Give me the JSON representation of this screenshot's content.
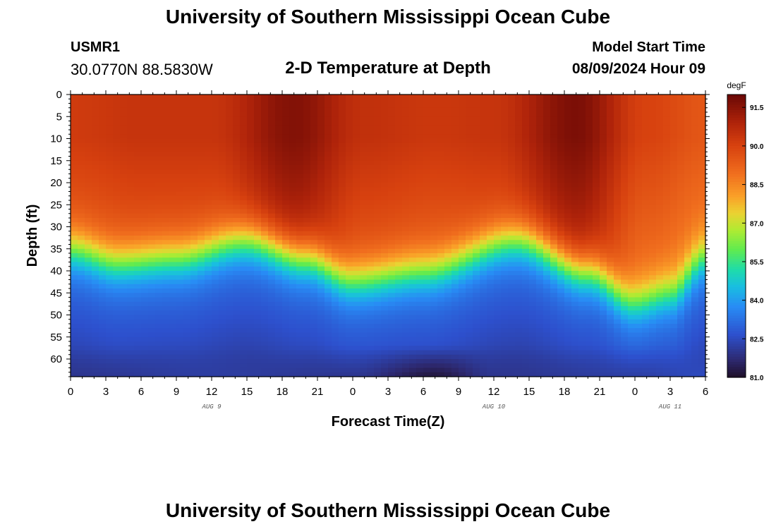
{
  "header": {
    "title": "University of Southern Mississippi Ocean Cube",
    "station_id": "USMR1",
    "station_coords": "30.0770N  88.5830W",
    "subtitle": "2-D Temperature at Depth",
    "start_label": "Model Start Time",
    "start_value": "08/09/2024 Hour 09"
  },
  "footer": {
    "title": "University of Southern Mississippi Ocean Cube"
  },
  "chart_data": {
    "type": "heatmap",
    "title": "2-D Temperature at Depth",
    "xlabel": "Forecast Time(Z)",
    "ylabel": "Depth (ft)",
    "x_range_hours": [
      0,
      54
    ],
    "x_tick_hours": [
      0,
      3,
      6,
      9,
      12,
      15,
      18,
      21,
      24,
      27,
      30,
      33,
      36,
      39,
      42,
      45,
      48,
      51,
      54
    ],
    "x_tick_labels": [
      "0",
      "3",
      "6",
      "9",
      "12",
      "15",
      "18",
      "21",
      "0",
      "3",
      "6",
      "9",
      "12",
      "15",
      "18",
      "21",
      "0",
      "3",
      "6"
    ],
    "date_labels": [
      {
        "label": "AUG 9",
        "hour": 12
      },
      {
        "label": "AUG 10",
        "hour": 36
      },
      {
        "label": "AUG 11",
        "hour": 51
      }
    ],
    "y_range_ft": [
      0,
      64
    ],
    "y_ticks": [
      0,
      5,
      10,
      15,
      20,
      25,
      30,
      35,
      40,
      45,
      50,
      55,
      60
    ],
    "colorbar": {
      "unit": "degF",
      "min": 81.0,
      "max": 92.0,
      "tick_labels": [
        "91.5",
        "90.0",
        "88.5",
        "87.0",
        "85.5",
        "84.0",
        "82.5",
        "81.0"
      ],
      "tick_values": [
        91.5,
        90.0,
        88.5,
        87.0,
        85.5,
        84.0,
        82.5,
        81.0
      ]
    },
    "thermocline_depth_ft": [
      {
        "hour": 0,
        "depth": 35
      },
      {
        "hour": 4,
        "depth": 38
      },
      {
        "hour": 9,
        "depth": 37
      },
      {
        "hour": 15,
        "depth": 33
      },
      {
        "hour": 20,
        "depth": 37
      },
      {
        "hour": 24,
        "depth": 42
      },
      {
        "hour": 30,
        "depth": 40
      },
      {
        "hour": 38,
        "depth": 33
      },
      {
        "hour": 44,
        "depth": 40
      },
      {
        "hour": 48,
        "depth": 47
      },
      {
        "hour": 51,
        "depth": 45
      },
      {
        "hour": 54,
        "depth": 37
      }
    ],
    "surface_temp_degF": [
      {
        "hour": 0,
        "temp": 90.2
      },
      {
        "hour": 6,
        "temp": 90.4
      },
      {
        "hour": 12,
        "temp": 90.4
      },
      {
        "hour": 19,
        "temp": 91.6
      },
      {
        "hour": 25,
        "temp": 90.5
      },
      {
        "hour": 31,
        "temp": 90.3
      },
      {
        "hour": 36,
        "temp": 90.4
      },
      {
        "hour": 43,
        "temp": 91.7
      },
      {
        "hour": 49,
        "temp": 90.0
      },
      {
        "hour": 54,
        "temp": 89.5
      }
    ],
    "bottom_temp_degF": [
      {
        "hour": 0,
        "temp": 82.0
      },
      {
        "hour": 12,
        "temp": 82.2
      },
      {
        "hour": 24,
        "temp": 82.0
      },
      {
        "hour": 31,
        "temp": 81.2
      },
      {
        "hour": 36,
        "temp": 82.0
      },
      {
        "hour": 48,
        "temp": 82.2
      },
      {
        "hour": 54,
        "temp": 82.5
      }
    ]
  }
}
